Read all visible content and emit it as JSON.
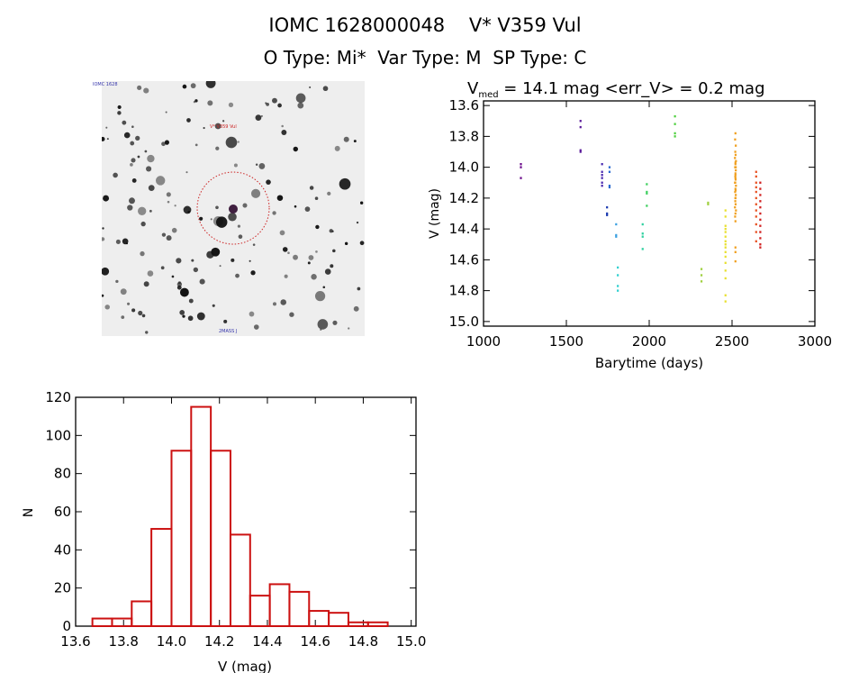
{
  "header": {
    "title": "IOMC 1628000048    V* V359 Vul",
    "subtitle": "O Type: Mi*  Var Type: M  SP Type: C"
  },
  "finder": {
    "label_top_left": "IOMC 1628",
    "target_label": "V* V359 Vul",
    "label_bottom": "2MASS J",
    "circle_color": "#cc2222"
  },
  "chart_data": [
    {
      "type": "scatter",
      "title_main": "V",
      "title_sub": "med",
      "title_rest": " = 14.1 mag <err_V> = 0.2 mag",
      "xlabel": "Barytime (days)",
      "ylabel": "V (mag)",
      "xlim": [
        1000,
        3000
      ],
      "ylim": [
        15.03,
        13.57
      ],
      "xticks": [
        1000,
        1500,
        2000,
        2500,
        3000
      ],
      "yticks": [
        13.6,
        13.8,
        14.0,
        14.2,
        14.4,
        14.6,
        14.8,
        15.0
      ],
      "series": [
        {
          "color": "#6a0a8a",
          "x": [
            1225,
            1225,
            1225
          ],
          "y": [
            13.98,
            14.0,
            14.07
          ]
        },
        {
          "color": "#5a1a9a",
          "x": [
            1585,
            1585,
            1585,
            1585
          ],
          "y": [
            13.7,
            13.74,
            13.89,
            13.9
          ]
        },
        {
          "color": "#4a2ab0",
          "x": [
            1715,
            1715,
            1715,
            1715,
            1715,
            1715
          ],
          "y": [
            13.98,
            14.03,
            14.05,
            14.07,
            14.1,
            14.12
          ]
        },
        {
          "color": "#2a6ad0",
          "x": [
            1760,
            1760,
            1760,
            1760
          ],
          "y": [
            14.0,
            14.03,
            14.12,
            14.13
          ]
        },
        {
          "color": "#1a3ab0",
          "x": [
            1745,
            1745,
            1745
          ],
          "y": [
            14.26,
            14.3,
            14.31
          ]
        },
        {
          "color": "#3aa0e0",
          "x": [
            1800,
            1800,
            1800
          ],
          "y": [
            14.37,
            14.44,
            14.45
          ]
        },
        {
          "color": "#30d0d0",
          "x": [
            1810,
            1810,
            1810,
            1810
          ],
          "y": [
            14.65,
            14.7,
            14.77,
            14.8
          ]
        },
        {
          "color": "#30d0a0",
          "x": [
            1960,
            1960,
            1960,
            1960
          ],
          "y": [
            14.37,
            14.43,
            14.45,
            14.53
          ]
        },
        {
          "color": "#40d060",
          "x": [
            1985,
            1985,
            1985,
            1985
          ],
          "y": [
            14.11,
            14.16,
            14.17,
            14.25
          ]
        },
        {
          "color": "#50d040",
          "x": [
            2155,
            2155,
            2155,
            2155
          ],
          "y": [
            13.67,
            13.72,
            13.78,
            13.8
          ]
        },
        {
          "color": "#a0d040",
          "x": [
            2315,
            2315,
            2315,
            2355,
            2355
          ],
          "y": [
            14.66,
            14.7,
            14.74,
            14.23,
            14.24
          ]
        },
        {
          "color": "#e8e030",
          "x": [
            2460,
            2460,
            2460,
            2460,
            2460,
            2460,
            2460,
            2460,
            2460,
            2460,
            2460,
            2460,
            2460,
            2460,
            2460,
            2460
          ],
          "y": [
            14.28,
            14.32,
            14.38,
            14.4,
            14.42,
            14.45,
            14.48,
            14.5,
            14.52,
            14.55,
            14.58,
            14.62,
            14.67,
            14.72,
            14.83,
            14.87
          ]
        },
        {
          "color": "#f0a020",
          "x": [
            2520,
            2518,
            2522,
            2519,
            2521,
            2517,
            2523,
            2520,
            2518,
            2522,
            2520,
            2519,
            2521,
            2517,
            2523,
            2520,
            2518,
            2522,
            2520,
            2519,
            2521,
            2517,
            2523,
            2520,
            2518,
            2522,
            2520,
            2519,
            2521,
            2520,
            2520,
            2520,
            2520,
            2520,
            2520,
            2520
          ],
          "y": [
            13.78,
            13.82,
            13.86,
            13.9,
            13.92,
            13.94,
            13.96,
            13.98,
            14.0,
            14.02,
            14.04,
            14.06,
            14.08,
            14.1,
            14.12,
            14.14,
            14.16,
            14.18,
            14.2,
            14.22,
            14.24,
            14.26,
            14.28,
            14.3,
            14.32,
            14.0,
            14.05,
            14.1,
            14.15,
            14.2,
            14.35,
            14.52,
            14.55,
            14.61,
            13.97,
            14.07
          ]
        },
        {
          "color": "#e85020",
          "x": [
            2645,
            2645,
            2645,
            2645,
            2645,
            2645,
            2645,
            2645,
            2645,
            2645,
            2645,
            2645
          ],
          "y": [
            14.03,
            14.06,
            14.1,
            14.13,
            14.16,
            14.2,
            14.24,
            14.28,
            14.32,
            14.37,
            14.42,
            14.48
          ]
        },
        {
          "color": "#d02020",
          "x": [
            2670,
            2670,
            2670,
            2670,
            2670,
            2670,
            2670,
            2670,
            2670,
            2670,
            2670,
            2670
          ],
          "y": [
            14.1,
            14.14,
            14.18,
            14.22,
            14.26,
            14.3,
            14.34,
            14.38,
            14.42,
            14.46,
            14.5,
            14.52
          ]
        }
      ]
    },
    {
      "type": "bar",
      "xlabel": "V (mag)",
      "ylabel": "N",
      "xlim": [
        13.6,
        15.02
      ],
      "ylim": [
        0,
        120
      ],
      "xticks": [
        13.6,
        13.8,
        14.0,
        14.2,
        14.4,
        14.6,
        14.8,
        15.0
      ],
      "yticks": [
        0,
        20,
        40,
        60,
        80,
        100,
        120
      ],
      "bin_edges": [
        13.67,
        13.752,
        13.834,
        13.916,
        14.0,
        14.082,
        14.164,
        14.246,
        14.328,
        14.41,
        14.492,
        14.574,
        14.656,
        14.738,
        14.82,
        14.902
      ],
      "values": [
        4,
        4,
        13,
        51,
        92,
        115,
        92,
        48,
        16,
        22,
        18,
        8,
        7,
        2,
        2
      ],
      "bar_color": "#cc1111"
    }
  ]
}
